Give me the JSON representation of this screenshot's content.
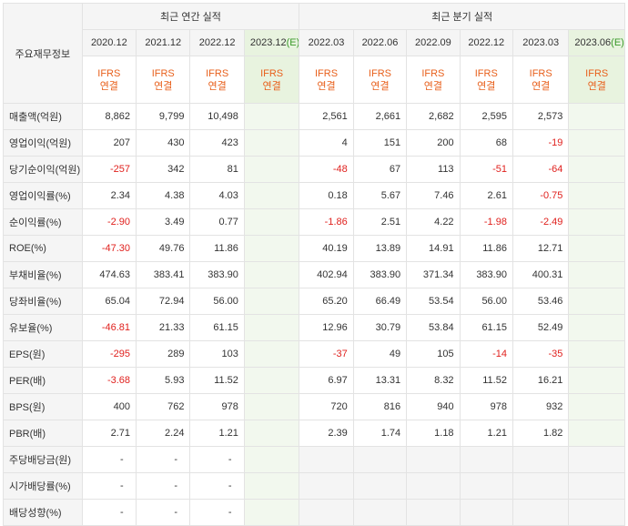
{
  "corner_label": "주요재무정보",
  "group_headers": {
    "annual": "최근 연간 실적",
    "quarterly": "최근 분기 실적"
  },
  "periods": [
    {
      "label": "2020.12",
      "estimate": false
    },
    {
      "label": "2021.12",
      "estimate": false
    },
    {
      "label": "2022.12",
      "estimate": false
    },
    {
      "label": "2023.12",
      "estimate": true
    },
    {
      "label": "2022.03",
      "estimate": false
    },
    {
      "label": "2022.06",
      "estimate": false
    },
    {
      "label": "2022.09",
      "estimate": false
    },
    {
      "label": "2022.12",
      "estimate": false
    },
    {
      "label": "2023.03",
      "estimate": false
    },
    {
      "label": "2023.06",
      "estimate": true
    }
  ],
  "estimate_tag": "(E)",
  "ifrs_line1": "IFRS",
  "ifrs_line2": "연결",
  "rows": [
    {
      "label": "매출액(억원)",
      "values": [
        "8,862",
        "9,799",
        "10,498",
        "",
        "2,561",
        "2,661",
        "2,682",
        "2,595",
        "2,573",
        ""
      ]
    },
    {
      "label": "영업이익(억원)",
      "values": [
        "207",
        "430",
        "423",
        "",
        "4",
        "151",
        "200",
        "68",
        "-19",
        ""
      ]
    },
    {
      "label": "당기순이익(억원)",
      "values": [
        "-257",
        "342",
        "81",
        "",
        "-48",
        "67",
        "113",
        "-51",
        "-64",
        ""
      ]
    },
    {
      "label": "영업이익률(%)",
      "values": [
        "2.34",
        "4.38",
        "4.03",
        "",
        "0.18",
        "5.67",
        "7.46",
        "2.61",
        "-0.75",
        ""
      ]
    },
    {
      "label": "순이익률(%)",
      "values": [
        "-2.90",
        "3.49",
        "0.77",
        "",
        "-1.86",
        "2.51",
        "4.22",
        "-1.98",
        "-2.49",
        ""
      ]
    },
    {
      "label": "ROE(%)",
      "values": [
        "-47.30",
        "49.76",
        "11.86",
        "",
        "40.19",
        "13.89",
        "14.91",
        "11.86",
        "12.71",
        ""
      ]
    },
    {
      "label": "부채비율(%)",
      "values": [
        "474.63",
        "383.41",
        "383.90",
        "",
        "402.94",
        "383.90",
        "371.34",
        "383.90",
        "400.31",
        ""
      ]
    },
    {
      "label": "당좌비율(%)",
      "values": [
        "65.04",
        "72.94",
        "56.00",
        "",
        "65.20",
        "66.49",
        "53.54",
        "56.00",
        "53.46",
        ""
      ]
    },
    {
      "label": "유보율(%)",
      "values": [
        "-46.81",
        "21.33",
        "61.15",
        "",
        "12.96",
        "30.79",
        "53.84",
        "61.15",
        "52.49",
        ""
      ]
    },
    {
      "label": "EPS(원)",
      "values": [
        "-295",
        "289",
        "103",
        "",
        "-37",
        "49",
        "105",
        "-14",
        "-35",
        ""
      ]
    },
    {
      "label": "PER(배)",
      "values": [
        "-3.68",
        "5.93",
        "11.52",
        "",
        "6.97",
        "13.31",
        "8.32",
        "11.52",
        "16.21",
        ""
      ]
    },
    {
      "label": "BPS(원)",
      "values": [
        "400",
        "762",
        "978",
        "",
        "720",
        "816",
        "940",
        "978",
        "932",
        ""
      ]
    },
    {
      "label": "PBR(배)",
      "values": [
        "2.71",
        "2.24",
        "1.21",
        "",
        "2.39",
        "1.74",
        "1.18",
        "1.21",
        "1.82",
        ""
      ]
    },
    {
      "label": "주당배당금(원)",
      "values": [
        "-",
        "-",
        "-",
        "",
        "",
        "",
        "",
        "",
        "",
        ""
      ]
    },
    {
      "label": "시가배당률(%)",
      "values": [
        "-",
        "-",
        "-",
        "",
        "",
        "",
        "",
        "",
        "",
        ""
      ]
    },
    {
      "label": "배당성향(%)",
      "values": [
        "-",
        "-",
        "-",
        "",
        "",
        "",
        "",
        "",
        "",
        ""
      ]
    }
  ],
  "colors": {
    "negative": "#e0211e",
    "ifrs": "#e8601c",
    "estimate_tag": "#3a9a2a"
  }
}
